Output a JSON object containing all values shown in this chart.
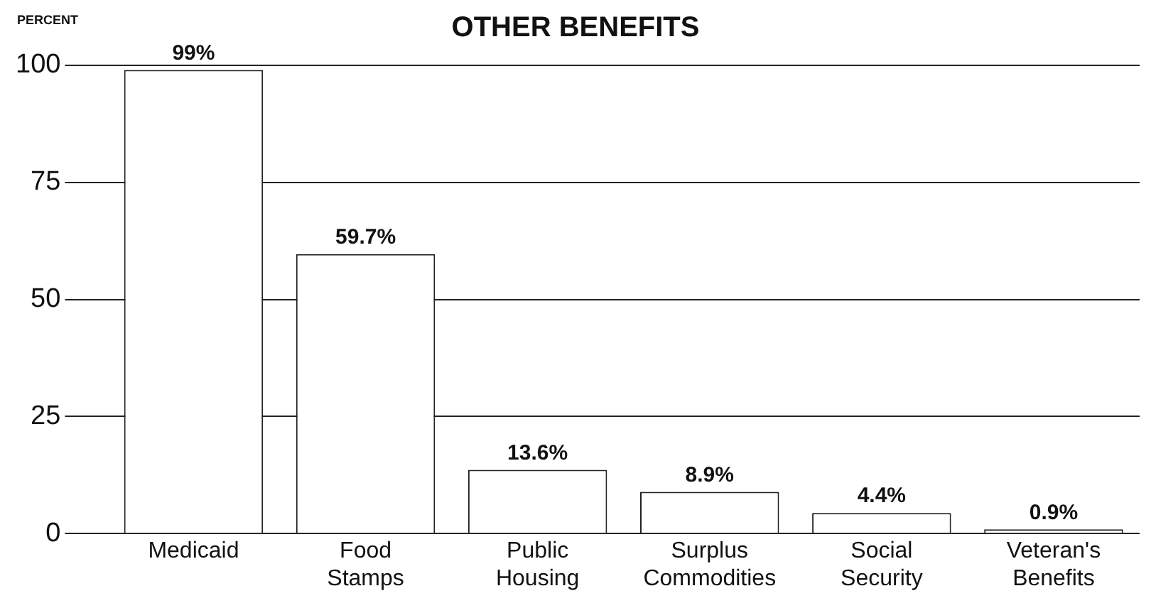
{
  "chart_data": {
    "type": "bar",
    "title": "OTHER BENEFITS",
    "ylabel": "PERCENT",
    "categories": [
      "Medicaid",
      "Food Stamps",
      "Public Housing",
      "Surplus Commodities",
      "Social Security",
      "Veteran's Benefits"
    ],
    "values": [
      99,
      59.7,
      13.6,
      8.9,
      4.4,
      0.9
    ],
    "value_labels": [
      "99%",
      "59.7%",
      "13.6%",
      "8.9%",
      "4.4%",
      "0.9%"
    ],
    "color": "#ffffff",
    "ylim": [
      0,
      100
    ],
    "yticks": [
      0,
      25,
      50,
      75,
      100
    ],
    "grid": "y",
    "legend": false
  }
}
